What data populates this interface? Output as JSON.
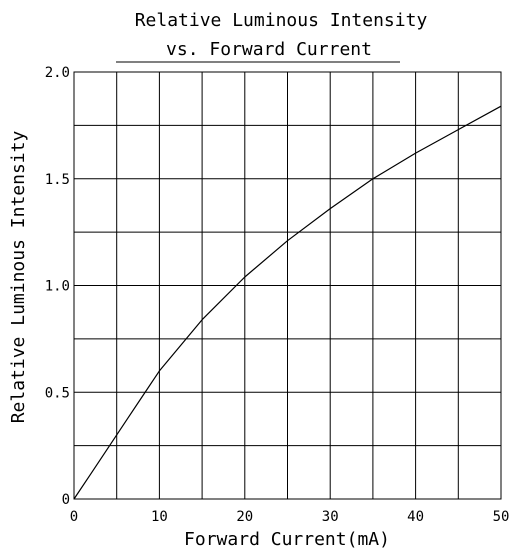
{
  "chart_data": {
    "type": "line",
    "title": "Relative Luminous Intensity",
    "subtitle": "vs. Forward Current",
    "xlabel": "Forward Current(mA)",
    "ylabel": "Relative Luminous Intensity",
    "xlim": [
      0,
      50
    ],
    "ylim": [
      0,
      2.0
    ],
    "grid": true,
    "x_major_ticks": [
      0,
      10,
      20,
      30,
      40,
      50
    ],
    "x_tick_labels": [
      "0",
      "10",
      "20",
      "30",
      "40",
      "50"
    ],
    "y_major_ticks": [
      0,
      0.5,
      1.0,
      1.5,
      2.0
    ],
    "y_tick_labels": [
      "0",
      "0.5",
      "1.0",
      "1.5",
      "2.0"
    ],
    "x_grid_step": 5,
    "y_grid_step": 0.25,
    "series": [
      {
        "x": [
          0,
          2,
          5,
          8,
          10,
          15,
          20,
          25,
          30,
          35,
          40,
          45,
          50
        ],
        "values": [
          0,
          0.12,
          0.3,
          0.48,
          0.6,
          0.84,
          1.04,
          1.21,
          1.36,
          1.5,
          1.62,
          1.73,
          1.84
        ]
      }
    ]
  },
  "colors": {
    "line": "#000000",
    "grid": "#000000",
    "background": "#ffffff"
  }
}
